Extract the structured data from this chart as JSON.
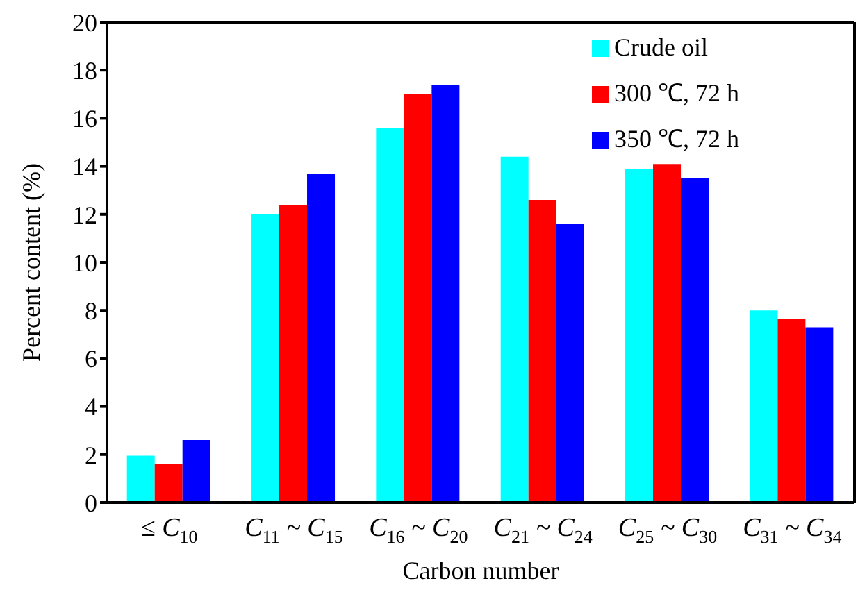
{
  "chart_data": {
    "type": "bar",
    "xlabel": "Carbon number",
    "ylabel": "Percent content (%)",
    "categories": [
      "≤ C$_{10}$",
      "C$_{11}$ ~ C$_{15}$",
      "C$_{16}$ ~ C$_{20}$",
      "C$_{21}$ ~ C$_{24}$",
      "C$_{25}$ ~ C$_{30}$",
      "C$_{31}$ ~ C$_{34}$"
    ],
    "series": [
      {
        "name": "Crude oil",
        "color": "#00ffff",
        "values": [
          1.95,
          12.0,
          15.6,
          14.4,
          13.9,
          8.0
        ]
      },
      {
        "name": "300 ℃, 72 h",
        "color": "#ff0000",
        "values": [
          1.6,
          12.4,
          17.0,
          12.6,
          14.1,
          7.65
        ]
      },
      {
        "name": "350 ℃, 72 h",
        "color": "#0000ff",
        "values": [
          2.6,
          13.7,
          17.4,
          11.6,
          13.5,
          7.3
        ]
      }
    ],
    "ylim": [
      0,
      20
    ],
    "yticks": [
      0,
      2,
      4,
      6,
      8,
      10,
      12,
      14,
      16,
      18,
      20
    ],
    "grid": false,
    "legend": "top right"
  }
}
